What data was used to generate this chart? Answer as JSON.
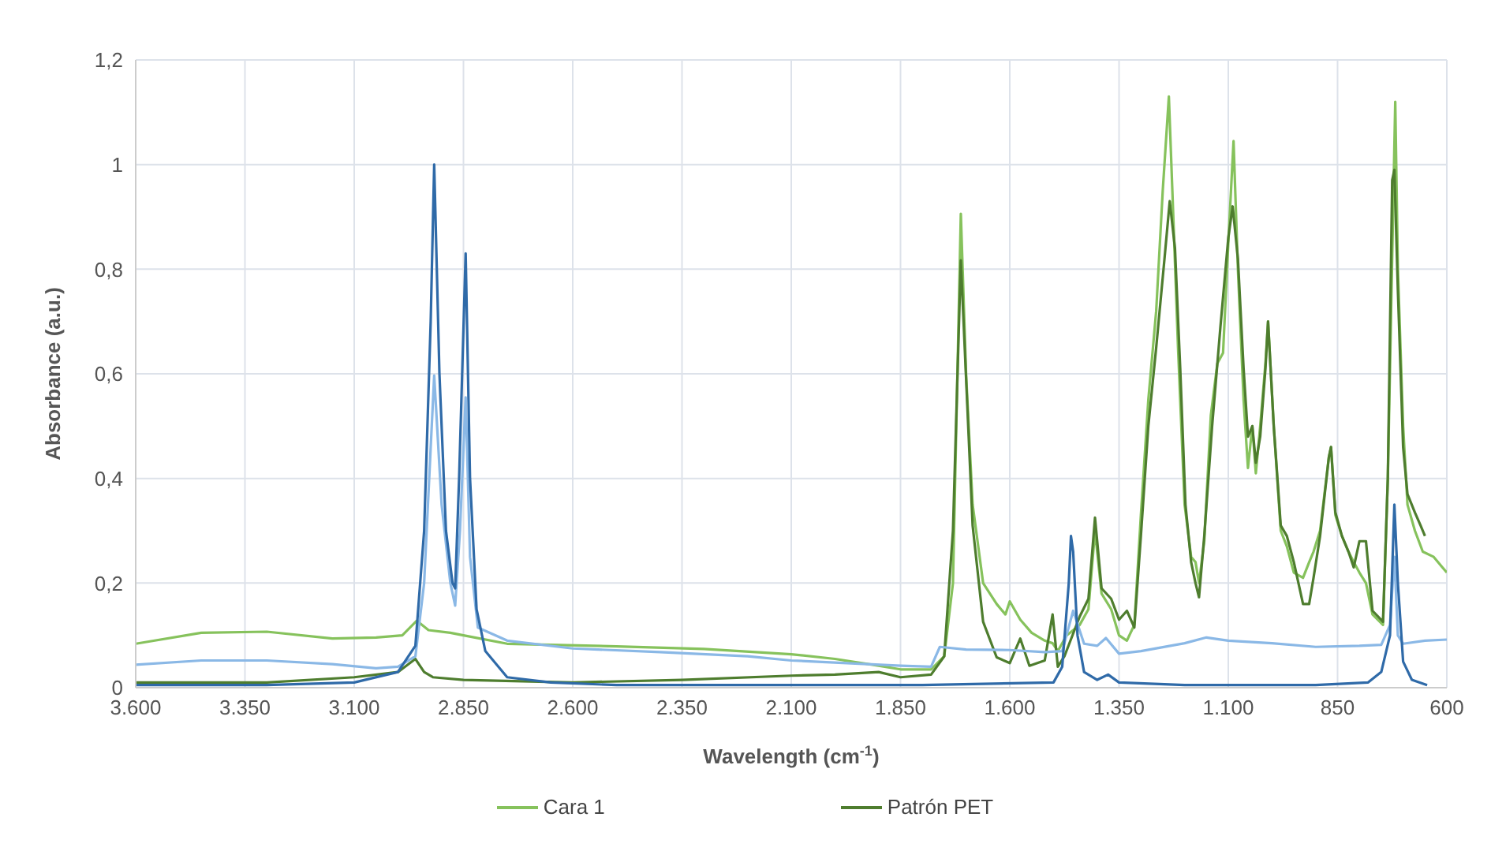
{
  "chart_data": {
    "type": "line",
    "xlabel": "Wavelength (cm$^{-1}$)",
    "ylabel": "Absorbance (a.u.)",
    "xlim": [
      3600,
      600
    ],
    "xticks": [
      {
        "value": 3600,
        "label": "3.600"
      },
      {
        "value": 3350,
        "label": "3.350"
      },
      {
        "value": 3100,
        "label": "3.100"
      },
      {
        "value": 2850,
        "label": "2.850"
      },
      {
        "value": 2600,
        "label": "2.600"
      },
      {
        "value": 2350,
        "label": "2.350"
      },
      {
        "value": 2100,
        "label": "2.100"
      },
      {
        "value": 1850,
        "label": "1.850"
      },
      {
        "value": 1600,
        "label": "1.600"
      },
      {
        "value": 1350,
        "label": "1.350"
      },
      {
        "value": 1100,
        "label": "1.100"
      },
      {
        "value": 850,
        "label": "850"
      },
      {
        "value": 600,
        "label": "600"
      }
    ],
    "ylim": [
      0,
      1.2
    ],
    "yticks": [
      0,
      {
        "value": 0.2,
        "label": "0,2"
      },
      {
        "value": 0.4,
        "label": "0,4"
      },
      {
        "value": 0.6,
        "label": "0,6"
      },
      {
        "value": 0.8,
        "label": "0,8"
      },
      1,
      {
        "value": 1.2,
        "label": "1,2"
      }
    ],
    "grid": true,
    "legend": "bottom",
    "marker": "none",
    "line_style": "solid",
    "series": [
      {
        "name": "Cara 1",
        "color": "#86c25c",
        "x": [
          3600,
          3450,
          3300,
          3150,
          3050,
          2990,
          2957,
          2930,
          2880,
          2850,
          2750,
          2500,
          2300,
          2100,
          2000,
          1900,
          1850,
          1780,
          1750,
          1730,
          1712,
          1700,
          1685,
          1661,
          1630,
          1610,
          1600,
          1576,
          1550,
          1520,
          1502,
          1490,
          1470,
          1440,
          1420,
          1405,
          1390,
          1368,
          1350,
          1332,
          1315,
          1300,
          1283,
          1265,
          1250,
          1236,
          1228,
          1215,
          1200,
          1185,
          1175,
          1167,
          1155,
          1140,
          1125,
          1112,
          1100,
          1088,
          1078,
          1065,
          1055,
          1045,
          1037,
          1027,
          1015,
          1009,
          996,
          980,
          966,
          950,
          929,
          915,
          905,
          890,
          870,
          865,
          855,
          840,
          825,
          813,
          800,
          785,
          770,
          746,
          735,
          718,
          712,
          700,
          690,
          673,
          655,
          630,
          610,
          600
        ],
        "values": [
          0.084,
          0.105,
          0.107,
          0.094,
          0.096,
          0.1,
          0.128,
          0.11,
          0.105,
          0.1,
          0.084,
          0.079,
          0.074,
          0.064,
          0.055,
          0.042,
          0.035,
          0.035,
          0.06,
          0.2,
          0.906,
          0.6,
          0.35,
          0.2,
          0.16,
          0.14,
          0.165,
          0.13,
          0.105,
          0.09,
          0.085,
          0.07,
          0.1,
          0.12,
          0.15,
          0.3,
          0.18,
          0.15,
          0.1,
          0.09,
          0.12,
          0.33,
          0.55,
          0.72,
          0.95,
          1.13,
          0.95,
          0.65,
          0.35,
          0.25,
          0.24,
          0.2,
          0.28,
          0.52,
          0.62,
          0.64,
          0.85,
          1.045,
          0.8,
          0.55,
          0.42,
          0.5,
          0.41,
          0.5,
          0.62,
          0.7,
          0.5,
          0.3,
          0.27,
          0.22,
          0.21,
          0.24,
          0.26,
          0.3,
          0.44,
          0.46,
          0.33,
          0.29,
          0.26,
          0.24,
          0.22,
          0.2,
          0.14,
          0.12,
          0.4,
          1.12,
          0.8,
          0.5,
          0.35,
          0.3,
          0.26,
          0.25,
          0.23,
          0.22
        ]
      },
      {
        "name": "Patrón PET",
        "color": "#4e7d2e",
        "x": [
          3600,
          3300,
          3100,
          3000,
          2960,
          2940,
          2920,
          2850,
          2600,
          2350,
          2100,
          2000,
          1900,
          1850,
          1780,
          1750,
          1730,
          1712,
          1685,
          1661,
          1630,
          1600,
          1576,
          1555,
          1520,
          1502,
          1490,
          1475,
          1440,
          1420,
          1405,
          1390,
          1368,
          1350,
          1332,
          1315,
          1300,
          1283,
          1265,
          1246,
          1234,
          1222,
          1210,
          1198,
          1185,
          1175,
          1167,
          1155,
          1137,
          1118,
          1100,
          1090,
          1078,
          1065,
          1055,
          1045,
          1037,
          1027,
          1015,
          1009,
          996,
          980,
          966,
          950,
          929,
          915,
          905,
          890,
          870,
          865,
          855,
          840,
          825,
          813,
          800,
          785,
          770,
          746,
          735,
          725,
          720,
          712,
          700,
          690,
          673,
          660,
          650
        ],
        "values": [
          0.01,
          0.01,
          0.02,
          0.03,
          0.055,
          0.03,
          0.02,
          0.015,
          0.01,
          0.015,
          0.023,
          0.025,
          0.03,
          0.02,
          0.025,
          0.06,
          0.3,
          0.817,
          0.31,
          0.126,
          0.058,
          0.047,
          0.094,
          0.042,
          0.052,
          0.14,
          0.04,
          0.06,
          0.136,
          0.17,
          0.325,
          0.19,
          0.17,
          0.13,
          0.147,
          0.115,
          0.29,
          0.5,
          0.65,
          0.82,
          0.93,
          0.84,
          0.61,
          0.35,
          0.24,
          0.2,
          0.173,
          0.29,
          0.5,
          0.69,
          0.86,
          0.92,
          0.82,
          0.61,
          0.48,
          0.5,
          0.43,
          0.48,
          0.61,
          0.7,
          0.5,
          0.31,
          0.29,
          0.24,
          0.16,
          0.16,
          0.21,
          0.29,
          0.44,
          0.46,
          0.335,
          0.29,
          0.26,
          0.23,
          0.28,
          0.28,
          0.147,
          0.126,
          0.4,
          0.97,
          0.99,
          0.76,
          0.46,
          0.37,
          0.335,
          0.31,
          0.29
        ]
      },
      {
        "color": "#8ab8e6",
        "x": [
          3600,
          3450,
          3300,
          3150,
          3050,
          3000,
          2960,
          2940,
          2917,
          2900,
          2880,
          2869,
          2858,
          2845,
          2835,
          2817,
          2750,
          2600,
          2400,
          2200,
          2100,
          1850,
          1780,
          1760,
          1700,
          1600,
          1520,
          1480,
          1455,
          1430,
          1400,
          1380,
          1350,
          1300,
          1200,
          1150,
          1100,
          1000,
          900,
          800,
          750,
          730,
          720,
          712,
          700,
          650,
          600
        ],
        "values": [
          0.044,
          0.052,
          0.052,
          0.045,
          0.037,
          0.04,
          0.06,
          0.2,
          0.597,
          0.35,
          0.2,
          0.157,
          0.3,
          0.555,
          0.25,
          0.115,
          0.09,
          0.075,
          0.068,
          0.06,
          0.052,
          0.042,
          0.04,
          0.078,
          0.073,
          0.072,
          0.068,
          0.07,
          0.147,
          0.084,
          0.08,
          0.095,
          0.065,
          0.07,
          0.085,
          0.096,
          0.09,
          0.085,
          0.078,
          0.08,
          0.082,
          0.12,
          0.25,
          0.1,
          0.084,
          0.09,
          0.092
        ]
      },
      {
        "color": "#2f6aa8",
        "x": [
          3600,
          3300,
          3100,
          3000,
          2960,
          2940,
          2925,
          2917,
          2905,
          2890,
          2875,
          2869,
          2860,
          2845,
          2835,
          2820,
          2800,
          2750,
          2650,
          2500,
          2000,
          1800,
          1500,
          1480,
          1465,
          1460,
          1455,
          1445,
          1430,
          1400,
          1375,
          1350,
          1200,
          900,
          780,
          750,
          730,
          720,
          712,
          700,
          680,
          645
        ],
        "values": [
          0.005,
          0.005,
          0.01,
          0.03,
          0.08,
          0.3,
          0.7,
          1.0,
          0.6,
          0.3,
          0.2,
          0.19,
          0.4,
          0.83,
          0.4,
          0.15,
          0.07,
          0.02,
          0.01,
          0.005,
          0.005,
          0.005,
          0.01,
          0.04,
          0.2,
          0.29,
          0.26,
          0.1,
          0.03,
          0.015,
          0.025,
          0.01,
          0.005,
          0.005,
          0.01,
          0.03,
          0.1,
          0.35,
          0.2,
          0.05,
          0.015,
          0.005
        ]
      }
    ]
  }
}
